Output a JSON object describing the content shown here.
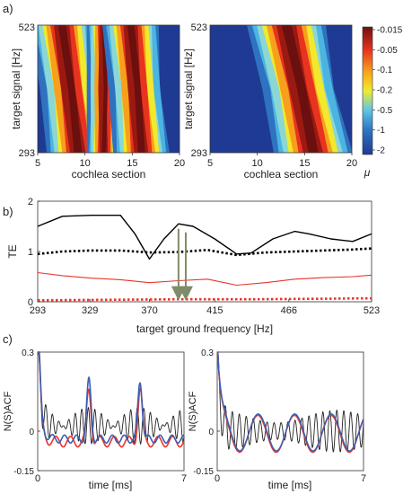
{
  "panels": {
    "a": "a)",
    "b": "b)",
    "c": "c)"
  },
  "chart_data": [
    {
      "id": "a-left",
      "type": "heatmap",
      "title": "",
      "xlabel": "cochlea section",
      "ylabel": "target signal [Hz]",
      "xticks": [
        "5",
        "10",
        "15",
        "20"
      ],
      "yticks": [
        "293",
        "523"
      ],
      "xlim": [
        5,
        20
      ],
      "ylim": [
        293,
        523
      ],
      "bands": [
        {
          "x_bottom": 9.3,
          "x_top": 7.5,
          "width": 2.2
        },
        {
          "x_bottom": 12.0,
          "x_top": 12.0,
          "width": 1.2
        },
        {
          "x_bottom": 16.0,
          "x_top": 14.8,
          "width": 2.0
        }
      ]
    },
    {
      "id": "a-right",
      "type": "heatmap",
      "title": "",
      "xlabel": "cochlea section",
      "ylabel": "target signal [Hz]",
      "xticks": [
        "5",
        "10",
        "15",
        "20"
      ],
      "yticks": [
        "293",
        "523"
      ],
      "xlim": [
        5,
        20
      ],
      "ylim": [
        293,
        523
      ],
      "bands": [
        {
          "x_bottom": 16.0,
          "x_top": 13.0,
          "width": 2.8
        }
      ]
    },
    {
      "id": "a-colorbar",
      "type": "colorbar",
      "label": "μ",
      "ticks": [
        "-0.015",
        "-0.05",
        "-0.1",
        "-0.2",
        "-0.5",
        "-1",
        "-2"
      ]
    },
    {
      "id": "b",
      "type": "line",
      "xlabel": "target ground frequency [Hz]",
      "ylabel": "TE",
      "xticks": [
        "293",
        "329",
        "370",
        "415",
        "466",
        "523"
      ],
      "yticks": [
        "0",
        "1",
        "2"
      ],
      "xlim": [
        293,
        523
      ],
      "ylim": [
        0,
        2
      ],
      "annotations": [
        {
          "type": "arrow",
          "x": 390,
          "y_from": 1.45,
          "y_to": 0.06
        },
        {
          "type": "arrow",
          "x": 395,
          "y_from": 1.38,
          "y_to": 0.06
        }
      ],
      "series": [
        {
          "color": "#000000",
          "dash": "solid",
          "x": [
            293,
            310,
            330,
            350,
            360,
            370,
            380,
            390,
            400,
            415,
            430,
            440,
            455,
            470,
            480,
            495,
            510,
            523
          ],
          "y": [
            1.5,
            1.7,
            1.72,
            1.72,
            1.35,
            0.85,
            1.25,
            1.55,
            1.5,
            1.25,
            0.95,
            0.97,
            1.25,
            1.4,
            1.35,
            1.25,
            1.2,
            1.35
          ]
        },
        {
          "color": "#000000",
          "dash": "dotted",
          "x": [
            293,
            310,
            330,
            350,
            370,
            390,
            410,
            430,
            450,
            470,
            490,
            510,
            523
          ],
          "y": [
            0.95,
            1.0,
            1.02,
            1.02,
            0.98,
            0.99,
            1.03,
            0.93,
            0.98,
            1.0,
            1.02,
            1.04,
            1.06
          ]
        },
        {
          "color": "#e8352a",
          "dash": "solid",
          "x": [
            293,
            310,
            330,
            350,
            370,
            390,
            410,
            430,
            450,
            470,
            490,
            510,
            523
          ],
          "y": [
            0.58,
            0.52,
            0.47,
            0.44,
            0.38,
            0.42,
            0.45,
            0.33,
            0.38,
            0.45,
            0.48,
            0.5,
            0.53
          ]
        },
        {
          "color": "#e8352a",
          "dash": "dotted",
          "x": [
            293,
            340,
            390,
            440,
            490,
            523
          ],
          "y": [
            0.03,
            0.04,
            0.05,
            0.05,
            0.06,
            0.07
          ]
        }
      ]
    },
    {
      "id": "c-left",
      "type": "line",
      "xlabel": "time [ms]",
      "ylabel": "N(S)ACF",
      "xticks": [
        "0",
        "7"
      ],
      "yticks": [
        "-0.15",
        "0",
        "0.3"
      ],
      "xlim": [
        0,
        7
      ],
      "ylim": [
        -0.15,
        0.3
      ]
    },
    {
      "id": "c-right",
      "type": "line",
      "xlabel": "time [ms]",
      "ylabel": "N(S)ACF",
      "xticks": [
        "0",
        "7"
      ],
      "yticks": [
        "-0.15",
        "0",
        "0.3"
      ],
      "xlim": [
        0,
        7
      ],
      "ylim": [
        -0.15,
        0.3
      ]
    }
  ]
}
